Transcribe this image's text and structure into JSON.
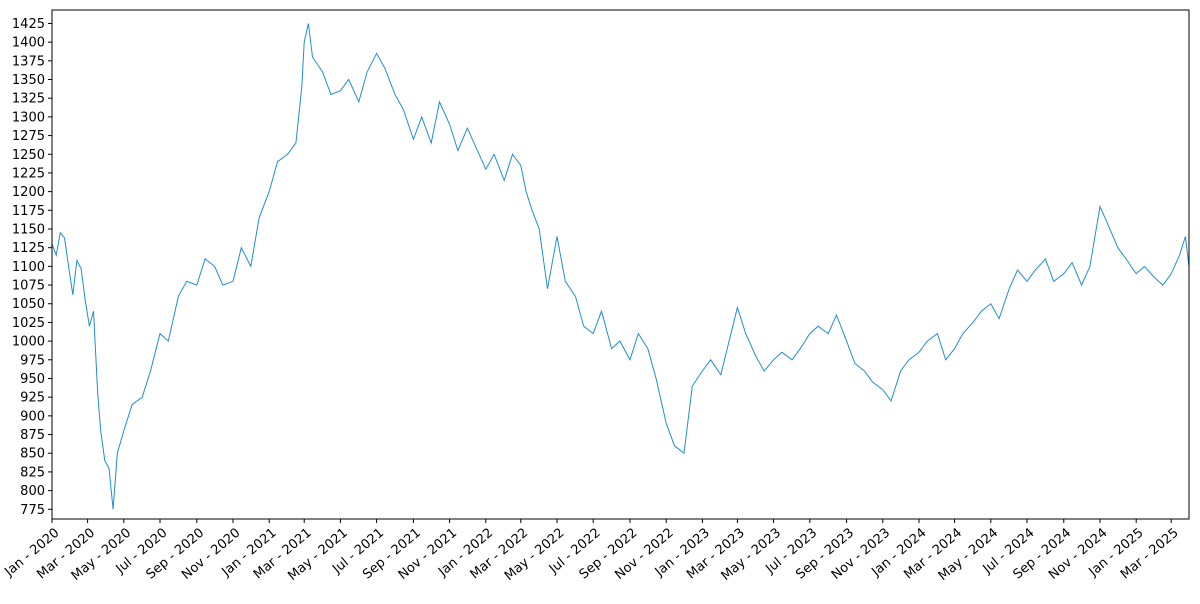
{
  "chart_data": {
    "type": "line",
    "title": "",
    "xlabel": "",
    "ylabel": "",
    "grid": false,
    "legend": "none",
    "colors": {
      "series": "#1f8fd0",
      "axes": "#000000"
    },
    "xlim": [
      "2020-01-01",
      "2025-03-31"
    ],
    "ylim": [
      762,
      1443
    ],
    "x_tick_labels": [
      "Jan - 2020",
      "Mar - 2020",
      "May - 2020",
      "Jul - 2020",
      "Sep - 2020",
      "Nov - 2020",
      "Jan - 2021",
      "Mar - 2021",
      "May - 2021",
      "Jul - 2021",
      "Sep - 2021",
      "Nov - 2021",
      "Jan - 2022",
      "Mar - 2022",
      "May - 2022",
      "Jul - 2022",
      "Sep - 2022",
      "Nov - 2022",
      "Jan - 2023",
      "Mar - 2023",
      "May - 2023",
      "Jul - 2023",
      "Sep - 2023",
      "Nov - 2023",
      "Jan - 2024",
      "Mar - 2024",
      "May - 2024",
      "Jul - 2024",
      "Sep - 2024",
      "Nov - 2024",
      "Jan - 2025",
      "Mar - 2025"
    ],
    "x_tick_dates": [
      "2020-01-01",
      "2020-03-01",
      "2020-05-01",
      "2020-07-01",
      "2020-09-01",
      "2020-11-01",
      "2021-01-01",
      "2021-03-01",
      "2021-05-01",
      "2021-07-01",
      "2021-09-01",
      "2021-11-01",
      "2022-01-01",
      "2022-03-01",
      "2022-05-01",
      "2022-07-01",
      "2022-09-01",
      "2022-11-01",
      "2023-01-01",
      "2023-03-01",
      "2023-05-01",
      "2023-07-01",
      "2023-09-01",
      "2023-11-01",
      "2024-01-01",
      "2024-03-01",
      "2024-05-01",
      "2024-07-01",
      "2024-09-01",
      "2024-11-01",
      "2025-01-01",
      "2025-03-01"
    ],
    "y_ticks": [
      775,
      800,
      825,
      850,
      875,
      900,
      925,
      950,
      975,
      1000,
      1025,
      1050,
      1075,
      1100,
      1125,
      1150,
      1175,
      1200,
      1225,
      1250,
      1275,
      1300,
      1325,
      1350,
      1375,
      1400,
      1425
    ],
    "series": [
      {
        "x": [
          "2020-01-01",
          "2020-01-08",
          "2020-01-15",
          "2020-01-22",
          "2020-01-29",
          "2020-02-05",
          "2020-02-12",
          "2020-02-19",
          "2020-02-26",
          "2020-03-04",
          "2020-03-11",
          "2020-03-18",
          "2020-03-23",
          "2020-03-30",
          "2020-04-06",
          "2020-04-13",
          "2020-04-20",
          "2020-05-01",
          "2020-05-15",
          "2020-06-01",
          "2020-06-15",
          "2020-07-01",
          "2020-07-15",
          "2020-08-01",
          "2020-08-15",
          "2020-09-01",
          "2020-09-15",
          "2020-10-01",
          "2020-10-15",
          "2020-11-01",
          "2020-11-15",
          "2020-12-01",
          "2020-12-15",
          "2021-01-01",
          "2021-01-15",
          "2021-02-01",
          "2021-02-15",
          "2021-02-25",
          "2021-03-01",
          "2021-03-08",
          "2021-03-15",
          "2021-04-01",
          "2021-04-15",
          "2021-05-01",
          "2021-05-15",
          "2021-06-01",
          "2021-06-15",
          "2021-07-01",
          "2021-07-15",
          "2021-08-01",
          "2021-08-15",
          "2021-09-01",
          "2021-09-15",
          "2021-10-01",
          "2021-10-15",
          "2021-11-01",
          "2021-11-15",
          "2021-12-01",
          "2021-12-15",
          "2022-01-01",
          "2022-01-15",
          "2022-02-01",
          "2022-02-15",
          "2022-03-01",
          "2022-03-10",
          "2022-03-20",
          "2022-04-01",
          "2022-04-15",
          "2022-05-01",
          "2022-05-15",
          "2022-06-01",
          "2022-06-15",
          "2022-07-01",
          "2022-07-15",
          "2022-08-01",
          "2022-08-15",
          "2022-09-01",
          "2022-09-15",
          "2022-10-01",
          "2022-10-15",
          "2022-11-01",
          "2022-11-15",
          "2022-12-01",
          "2022-12-15",
          "2023-01-01",
          "2023-01-15",
          "2023-02-01",
          "2023-02-15",
          "2023-03-01",
          "2023-03-15",
          "2023-04-01",
          "2023-04-15",
          "2023-05-01",
          "2023-05-15",
          "2023-06-01",
          "2023-06-15",
          "2023-07-01",
          "2023-07-15",
          "2023-08-01",
          "2023-08-15",
          "2023-09-01",
          "2023-09-15",
          "2023-10-01",
          "2023-10-15",
          "2023-11-01",
          "2023-11-15",
          "2023-12-01",
          "2023-12-15",
          "2024-01-01",
          "2024-01-15",
          "2024-02-01",
          "2024-02-15",
          "2024-03-01",
          "2024-03-15",
          "2024-04-01",
          "2024-04-15",
          "2024-05-01",
          "2024-05-15",
          "2024-06-01",
          "2024-06-15",
          "2024-07-01",
          "2024-07-15",
          "2024-08-01",
          "2024-08-15",
          "2024-09-01",
          "2024-09-15",
          "2024-10-01",
          "2024-10-15",
          "2024-11-01",
          "2024-11-15",
          "2024-12-01",
          "2024-12-15",
          "2025-01-01",
          "2025-01-15",
          "2025-02-01",
          "2025-02-15",
          "2025-03-01",
          "2025-03-15",
          "2025-03-25",
          "2025-03-31"
        ],
        "values": [
          1130,
          1115,
          1145,
          1138,
          1100,
          1062,
          1108,
          1097,
          1055,
          1020,
          1040,
          930,
          880,
          840,
          830,
          775,
          850,
          880,
          915,
          925,
          960,
          1010,
          1000,
          1060,
          1080,
          1075,
          1110,
          1100,
          1075,
          1080,
          1125,
          1100,
          1165,
          1200,
          1240,
          1250,
          1265,
          1340,
          1400,
          1425,
          1380,
          1360,
          1330,
          1335,
          1350,
          1320,
          1360,
          1385,
          1365,
          1330,
          1310,
          1270,
          1300,
          1265,
          1320,
          1290,
          1255,
          1285,
          1260,
          1230,
          1250,
          1215,
          1250,
          1235,
          1200,
          1175,
          1150,
          1070,
          1140,
          1080,
          1060,
          1020,
          1010,
          1040,
          990,
          1000,
          975,
          1010,
          990,
          950,
          890,
          860,
          850,
          940,
          960,
          975,
          955,
          1000,
          1045,
          1010,
          980,
          960,
          975,
          985,
          975,
          990,
          1010,
          1020,
          1010,
          1035,
          1000,
          970,
          960,
          945,
          935,
          920,
          960,
          975,
          985,
          1000,
          1010,
          975,
          990,
          1010,
          1025,
          1040,
          1050,
          1030,
          1070,
          1095,
          1080,
          1095,
          1110,
          1080,
          1090,
          1105,
          1075,
          1100,
          1180,
          1155,
          1125,
          1110,
          1090,
          1100,
          1085,
          1075,
          1090,
          1115,
          1140,
          1100
        ]
      }
    ]
  }
}
